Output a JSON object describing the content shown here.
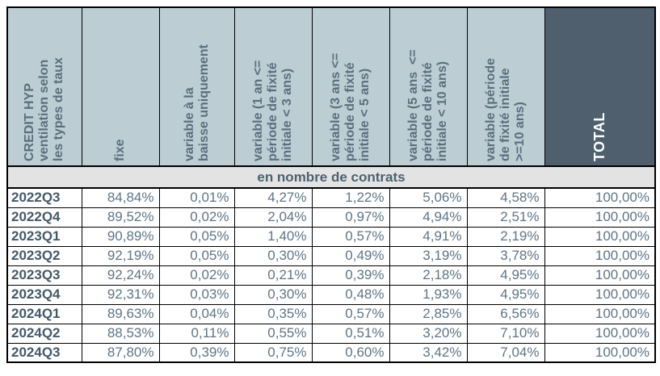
{
  "colors": {
    "header_bg": "#bccdd3",
    "total_bg": "#4f5f6d",
    "band_bg": "#e3e3e3",
    "header_text": "#5a6e7d",
    "value_text": "#5e7587",
    "label_text": "#44596a",
    "band_text": "#4a6272",
    "total_text": "#ffffff",
    "border": "#000000"
  },
  "table": {
    "corner_header_lines": [
      "CREDIT HYP",
      "ventilation selon",
      "les types de taux"
    ],
    "columns": [
      {
        "lines": [
          "fixe"
        ]
      },
      {
        "lines": [
          "variable à la",
          "baisse uniquement"
        ]
      },
      {
        "lines": [
          "variable (1 an <=",
          "période de fixité",
          "initiale < 3 ans)"
        ]
      },
      {
        "lines": [
          "variable (3 ans <=",
          "période de fixité",
          "initiale < 5 ans)"
        ]
      },
      {
        "lines": [
          "variable (5 ans  <=",
          "période de fixité",
          "initiale < 10 ans)"
        ]
      },
      {
        "lines": [
          "variable (période",
          "de fixité initiale",
          ">=10 ans)"
        ]
      }
    ],
    "total_header": "TOTAL",
    "section_banner": "en nombre de contrats",
    "rows": [
      {
        "label": "2022Q3",
        "values": [
          "84,84%",
          "0,01%",
          "4,27%",
          "1,22%",
          "5,06%",
          "4,58%",
          "100,00%"
        ]
      },
      {
        "label": "2022Q4",
        "values": [
          "89,52%",
          "0,02%",
          "2,04%",
          "0,97%",
          "4,94%",
          "2,51%",
          "100,00%"
        ]
      },
      {
        "label": "2023Q1",
        "values": [
          "90,89%",
          "0,05%",
          "1,40%",
          "0,57%",
          "4,91%",
          "2,19%",
          "100,00%"
        ]
      },
      {
        "label": "2023Q2",
        "values": [
          "92,19%",
          "0,05%",
          "0,30%",
          "0,49%",
          "3,19%",
          "3,78%",
          "100,00%"
        ]
      },
      {
        "label": "2023Q3",
        "values": [
          "92,24%",
          "0,02%",
          "0,21%",
          "0,39%",
          "2,18%",
          "4,95%",
          "100,00%"
        ]
      },
      {
        "label": "2023Q4",
        "values": [
          "92,31%",
          "0,03%",
          "0,30%",
          "0,48%",
          "1,93%",
          "4,95%",
          "100,00%"
        ]
      },
      {
        "label": "2024Q1",
        "values": [
          "89,63%",
          "0,04%",
          "0,35%",
          "0,57%",
          "2,85%",
          "6,56%",
          "100,00%"
        ]
      },
      {
        "label": "2024Q2",
        "values": [
          "88,53%",
          "0,11%",
          "0,55%",
          "0,51%",
          "3,20%",
          "7,10%",
          "100,00%"
        ]
      },
      {
        "label": "2024Q3",
        "values": [
          "87,80%",
          "0,39%",
          "0,75%",
          "0,60%",
          "3,42%",
          "7,04%",
          "100,00%"
        ]
      }
    ]
  },
  "chart_data": {
    "type": "table",
    "title": "CREDIT HYP ventilation selon les types de taux",
    "section": "en nombre de contrats",
    "columns": [
      "fixe",
      "variable à la baisse uniquement",
      "variable (1 an <= période de fixité initiale < 3 ans)",
      "variable (3 ans <= période de fixité initiale < 5 ans)",
      "variable (5 ans <= période de fixité initiale < 10 ans)",
      "variable (période de fixité initiale >=10 ans)",
      "TOTAL"
    ],
    "row_labels": [
      "2022Q3",
      "2022Q4",
      "2023Q1",
      "2023Q2",
      "2023Q3",
      "2023Q4",
      "2024Q1",
      "2024Q2",
      "2024Q3"
    ],
    "values_percent": [
      [
        84.84,
        0.01,
        4.27,
        1.22,
        5.06,
        4.58,
        100.0
      ],
      [
        89.52,
        0.02,
        2.04,
        0.97,
        4.94,
        2.51,
        100.0
      ],
      [
        90.89,
        0.05,
        1.4,
        0.57,
        4.91,
        2.19,
        100.0
      ],
      [
        92.19,
        0.05,
        0.3,
        0.49,
        3.19,
        3.78,
        100.0
      ],
      [
        92.24,
        0.02,
        0.21,
        0.39,
        2.18,
        4.95,
        100.0
      ],
      [
        92.31,
        0.03,
        0.3,
        0.48,
        1.93,
        4.95,
        100.0
      ],
      [
        89.63,
        0.04,
        0.35,
        0.57,
        2.85,
        6.56,
        100.0
      ],
      [
        88.53,
        0.11,
        0.55,
        0.51,
        3.2,
        7.1,
        100.0
      ],
      [
        87.8,
        0.39,
        0.75,
        0.6,
        3.42,
        7.04,
        100.0
      ]
    ]
  }
}
